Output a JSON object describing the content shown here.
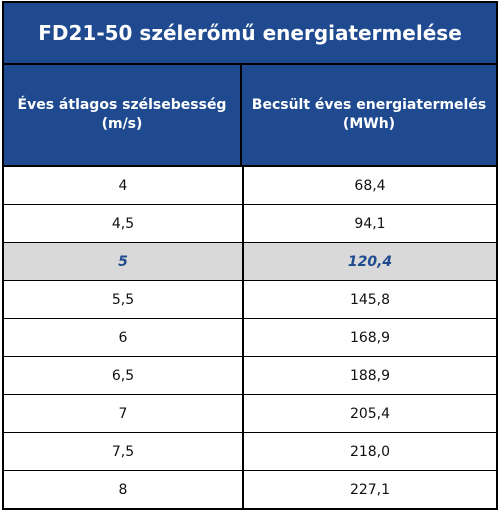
{
  "table": {
    "title": "FD21-50 szélerőmű energiatermelése",
    "headers": [
      "Éves átlagos szélsebesség (m/s)",
      "Becsült éves energiatermelés (MWh)"
    ],
    "rows": [
      [
        "4",
        "68,4"
      ],
      [
        "4,5",
        "94,1"
      ],
      [
        "5",
        "120,4"
      ],
      [
        "5,5",
        "145,8"
      ],
      [
        "6",
        "168,9"
      ],
      [
        "6,5",
        "188,9"
      ],
      [
        "7",
        "205,4"
      ],
      [
        "7,5",
        "218,0"
      ],
      [
        "8",
        "227,1"
      ]
    ],
    "highlighted_row": 2
  },
  "colors": {
    "header_bg": "#1f4a8f",
    "highlight_bg": "#d9d9d9",
    "highlight_text": "#1f4a8f"
  }
}
